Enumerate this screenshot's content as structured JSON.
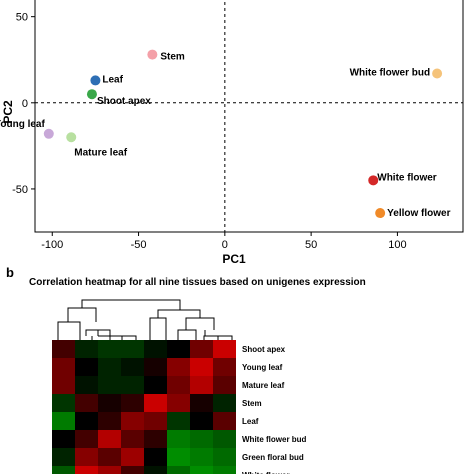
{
  "chart_data": [
    {
      "type": "scatter",
      "panel": "",
      "title": "",
      "xlabel": "PC1",
      "ylabel": "PC2",
      "xlim": [
        -110,
        138
      ],
      "ylim": [
        -75,
        62
      ],
      "xticks": [
        -100,
        -50,
        0,
        50,
        100
      ],
      "yticks": [
        50,
        0,
        -50
      ],
      "reference_lines": {
        "x": 0,
        "y": 0,
        "style": "dashed"
      },
      "points": [
        {
          "label": "Stem",
          "x": -42,
          "y": 28,
          "color": "#f4a0a8"
        },
        {
          "label": "Leaf",
          "x": -75,
          "y": 13,
          "color": "#2e6fb5"
        },
        {
          "label": "Shoot apex",
          "x": -77,
          "y": 5,
          "color": "#3aa84a"
        },
        {
          "label": "White flower bud",
          "x": 123,
          "y": 17,
          "color": "#f5c37a"
        },
        {
          "label": "Young leaf",
          "x": -102,
          "y": -18,
          "color": "#c8a8d8"
        },
        {
          "label": "Mature leaf",
          "x": -89,
          "y": -20,
          "color": "#b8e0a0"
        },
        {
          "label": "White flower",
          "x": 86,
          "y": -45,
          "color": "#d42828"
        },
        {
          "label": "Yellow flower",
          "x": 90,
          "y": -64,
          "color": "#f08a28"
        }
      ]
    },
    {
      "type": "heatmap",
      "panel": "b",
      "title": "Correlation heatmap for all nine tissues based on unigenes expression",
      "row_labels": [
        "Shoot apex",
        "Young leaf",
        "Mature leaf",
        "Stem",
        "Leaf",
        "White flower bud",
        "Green floral bud",
        "White flower"
      ],
      "values": [
        [
          0.3,
          -0.2,
          -0.3,
          -0.3,
          -0.1,
          0.0,
          0.5,
          0.9
        ],
        [
          0.5,
          0.0,
          -0.2,
          -0.1,
          0.1,
          0.6,
          0.9,
          0.5
        ],
        [
          0.5,
          -0.1,
          -0.2,
          -0.2,
          0.0,
          0.5,
          0.8,
          0.4
        ],
        [
          -0.3,
          0.3,
          0.1,
          0.2,
          0.9,
          0.6,
          0.1,
          -0.2
        ],
        [
          -0.7,
          0.0,
          0.2,
          0.6,
          0.5,
          -0.3,
          0.0,
          0.4
        ],
        [
          0.0,
          0.3,
          0.8,
          0.4,
          0.2,
          -0.7,
          -0.6,
          -0.5
        ],
        [
          -0.2,
          0.6,
          0.4,
          0.7,
          0.0,
          -0.8,
          -0.7,
          -0.6
        ],
        [
          -0.5,
          0.9,
          0.7,
          0.3,
          -0.1,
          -0.6,
          -0.8,
          -0.7
        ]
      ],
      "color_scale": {
        "low": "#00b000",
        "mid": "#000000",
        "high": "#e00000"
      }
    }
  ]
}
